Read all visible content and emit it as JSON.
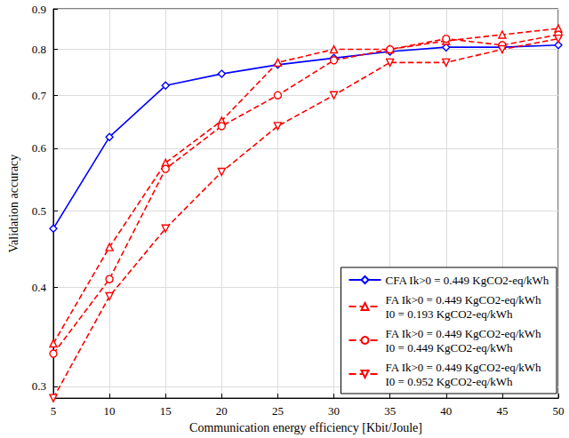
{
  "chart_data": {
    "type": "line",
    "x_label": "Communication energy efficiency [Kbit/Joule]",
    "y_label": "Validation accuracy",
    "x": [
      5,
      10,
      15,
      20,
      25,
      30,
      35,
      40,
      45,
      50
    ],
    "xlim": [
      5,
      50
    ],
    "xticks": [
      5,
      10,
      15,
      20,
      25,
      30,
      35,
      40,
      45,
      50
    ],
    "ylim": [
      0.29,
      0.9
    ],
    "yticks": [
      0.3,
      0.4,
      0.5,
      0.6,
      0.7,
      0.8,
      0.9
    ],
    "log": "y",
    "grid": true,
    "legend": "lower right",
    "series": [
      {
        "name": "CFA Ik>0 = 0.449 KgCO2-eq/kWh",
        "color": "#0000ff",
        "marker": "diamond",
        "line_style": "solid",
        "values": [
          0.475,
          0.62,
          0.72,
          0.745,
          0.765,
          0.78,
          0.795,
          0.805,
          0.805,
          0.81
        ]
      },
      {
        "name": "FA Ik>0 = 0.449 KgCO2-eq/kWh\nI0 = 0.193 KgCO2-eq/kWh",
        "color": "#ff0000",
        "marker": "triangle",
        "line_style": "dashed",
        "values": [
          0.34,
          0.45,
          0.575,
          0.65,
          0.77,
          0.8,
          0.8,
          0.82,
          0.835,
          0.85
        ]
      },
      {
        "name": "FA Ik>0 = 0.449 KgCO2-eq/kWh\nI0 = 0.449 KgCO2-eq/kWh",
        "color": "#ff0000",
        "marker": "circle",
        "line_style": "dashed",
        "values": [
          0.33,
          0.41,
          0.565,
          0.64,
          0.7,
          0.775,
          0.8,
          0.825,
          0.81,
          0.835
        ]
      },
      {
        "name": "FA Ik>0 = 0.449 KgCO2-eq/kWh\nI0 = 0.952 KgCO2-eq/kWh",
        "color": "#ff0000",
        "marker": "triangle-down",
        "line_style": "dashed",
        "values": [
          0.29,
          0.39,
          0.475,
          0.56,
          0.64,
          0.7,
          0.77,
          0.77,
          0.8,
          0.825
        ]
      }
    ]
  }
}
